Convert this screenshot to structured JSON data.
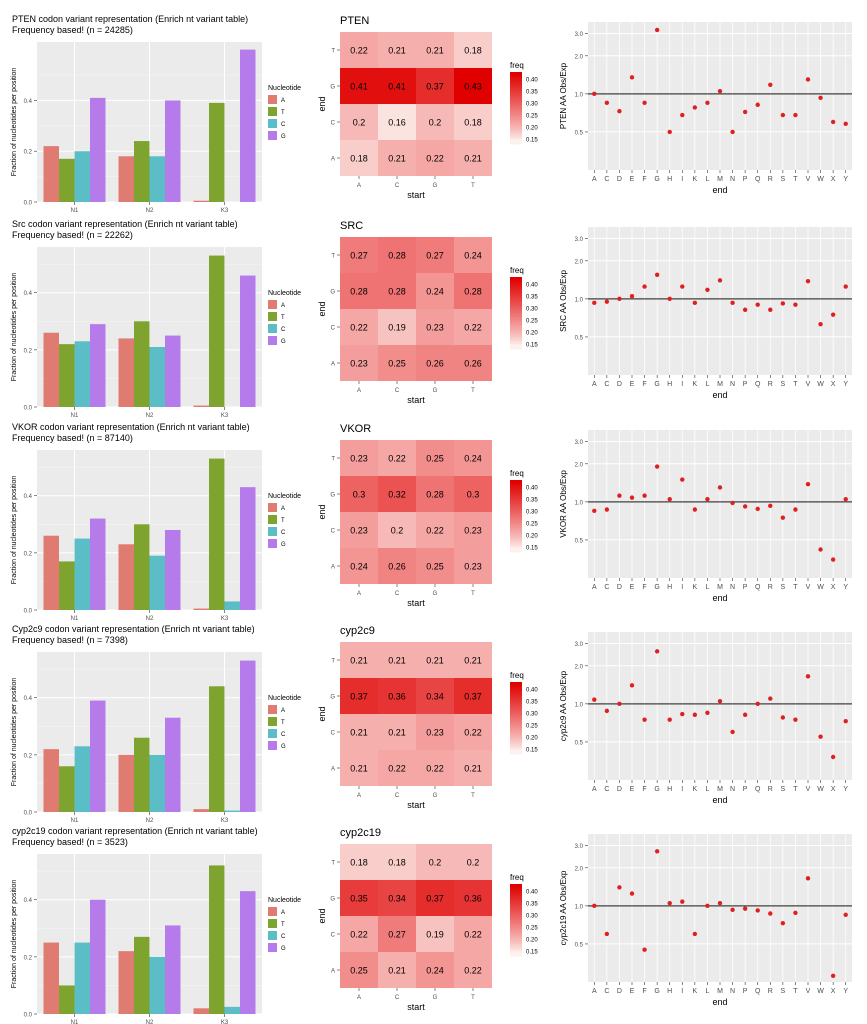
{
  "colors": {
    "nucleotide_A": "#E07B72",
    "nucleotide_T": "#7EA32E",
    "nucleotide_C": "#5BBEC6",
    "nucleotide_G": "#B57BEA",
    "panel_bg": "#EBEBEB",
    "grid": "#FFFFFF",
    "heat_low": "#FDF1EE",
    "heat_high": "#E00000",
    "point": "#E02020",
    "refline": "#404040"
  },
  "legend_nucleotide": {
    "title": "Nucleotide",
    "labels": [
      "A",
      "T",
      "C",
      "G"
    ]
  },
  "legend_heat": {
    "title": "freq",
    "ticks": [
      "0.40",
      "0.35",
      "0.30",
      "0.25",
      "0.20",
      "0.15"
    ],
    "tick_values": [
      0.4,
      0.35,
      0.3,
      0.25,
      0.2,
      0.15
    ]
  },
  "chart_data": [
    {
      "type": "bar",
      "title": "PTEN codon variant representation (Enrich nt variant table)",
      "subtitle": "Frequency based! (n = 24285)",
      "ylabel": "Fraction of nucleotides per position",
      "categories": [
        "N1",
        "N2",
        "K3"
      ],
      "yticks": [
        "0.0",
        "0.2",
        "0.4"
      ],
      "ylim": [
        0,
        0.63
      ],
      "series": [
        {
          "name": "A",
          "values": [
            0.22,
            0.18,
            0.005
          ]
        },
        {
          "name": "T",
          "values": [
            0.17,
            0.24,
            0.39
          ]
        },
        {
          "name": "C",
          "values": [
            0.2,
            0.18,
            0.0
          ]
        },
        {
          "name": "G",
          "values": [
            0.41,
            0.4,
            0.6
          ]
        }
      ]
    },
    {
      "type": "heatmap",
      "title": "PTEN",
      "xlabel": "start",
      "ylabel": "end",
      "x": [
        "A",
        "C",
        "G",
        "T"
      ],
      "y": [
        "T",
        "G",
        "C",
        "A"
      ],
      "values": [
        [
          0.22,
          0.21,
          0.21,
          0.18
        ],
        [
          0.41,
          0.41,
          0.37,
          0.43
        ],
        [
          0.2,
          0.16,
          0.2,
          0.18
        ],
        [
          0.18,
          0.21,
          0.22,
          0.21
        ]
      ],
      "value_labels": [
        [
          "0.22",
          "0.21",
          "0.21",
          "0.18"
        ],
        [
          "0.41",
          "0.41",
          "0.37",
          "0.43"
        ],
        [
          "0.2",
          "0.16",
          "0.2",
          "0.18"
        ],
        [
          "0.18",
          "0.21",
          "0.22",
          "0.21"
        ]
      ]
    },
    {
      "type": "scatter",
      "xlabel": "end",
      "ylabel": "PTEN AA Obs/Exp",
      "log_y": true,
      "ylim": [
        0.25,
        3.7
      ],
      "yticks": [
        "0.5",
        "1.0",
        "2.0",
        "3.0"
      ],
      "ytick_values": [
        0.5,
        1.0,
        2.0,
        3.0
      ],
      "refline": 1.0,
      "x": [
        "A",
        "C",
        "D",
        "E",
        "F",
        "G",
        "H",
        "I",
        "K",
        "L",
        "M",
        "N",
        "P",
        "Q",
        "R",
        "S",
        "T",
        "V",
        "W",
        "X",
        "Y"
      ],
      "values": [
        1.0,
        0.85,
        0.73,
        1.35,
        0.85,
        3.2,
        0.5,
        0.68,
        0.78,
        0.85,
        1.05,
        0.5,
        0.72,
        0.82,
        1.18,
        0.68,
        0.68,
        1.3,
        0.93,
        0.6,
        0.58
      ]
    },
    {
      "type": "bar",
      "title": "Src codon variant representation (Enrich nt variant table)",
      "subtitle": "Frequency based! (n = 22262)",
      "ylabel": "Fraction of nucleotides per position",
      "categories": [
        "N1",
        "N2",
        "K3"
      ],
      "yticks": [
        "0.0",
        "0.2",
        "0.4"
      ],
      "ylim": [
        0,
        0.56
      ],
      "series": [
        {
          "name": "A",
          "values": [
            0.26,
            0.24,
            0.005
          ]
        },
        {
          "name": "T",
          "values": [
            0.22,
            0.3,
            0.53
          ]
        },
        {
          "name": "C",
          "values": [
            0.23,
            0.21,
            0.0
          ]
        },
        {
          "name": "G",
          "values": [
            0.29,
            0.25,
            0.46
          ]
        }
      ]
    },
    {
      "type": "heatmap",
      "title": "SRC",
      "xlabel": "start",
      "ylabel": "end",
      "x": [
        "A",
        "C",
        "G",
        "T"
      ],
      "y": [
        "T",
        "G",
        "C",
        "A"
      ],
      "values": [
        [
          0.27,
          0.28,
          0.27,
          0.24
        ],
        [
          0.28,
          0.28,
          0.24,
          0.28
        ],
        [
          0.22,
          0.19,
          0.23,
          0.22
        ],
        [
          0.23,
          0.25,
          0.26,
          0.26
        ]
      ],
      "value_labels": [
        [
          "0.27",
          "0.28",
          "0.27",
          "0.24"
        ],
        [
          "0.28",
          "0.28",
          "0.24",
          "0.28"
        ],
        [
          "0.22",
          "0.19",
          "0.23",
          "0.22"
        ],
        [
          "0.23",
          "0.25",
          "0.26",
          "0.26"
        ]
      ]
    },
    {
      "type": "scatter",
      "xlabel": "end",
      "ylabel": "SRC AA Obs/Exp",
      "log_y": true,
      "ylim": [
        0.25,
        3.7
      ],
      "yticks": [
        "0.5",
        "1.0",
        "2.0",
        "3.0"
      ],
      "ytick_values": [
        0.5,
        1.0,
        2.0,
        3.0
      ],
      "refline": 1.0,
      "x": [
        "A",
        "C",
        "D",
        "E",
        "F",
        "G",
        "H",
        "I",
        "K",
        "L",
        "M",
        "N",
        "P",
        "Q",
        "R",
        "S",
        "T",
        "V",
        "W",
        "X",
        "Y"
      ],
      "values": [
        0.93,
        0.95,
        1.0,
        1.05,
        1.25,
        1.55,
        1.0,
        1.25,
        0.93,
        1.18,
        1.4,
        0.93,
        0.82,
        0.9,
        0.82,
        0.92,
        0.9,
        1.38,
        0.63,
        0.75,
        1.25
      ]
    },
    {
      "type": "bar",
      "title": "VKOR codon variant representation (Enrich nt variant table)",
      "subtitle": "Frequency based! (n = 87140)",
      "ylabel": "Fraction of nucleotides per position",
      "categories": [
        "N1",
        "N2",
        "K3"
      ],
      "yticks": [
        "0.0",
        "0.2",
        "0.4"
      ],
      "ylim": [
        0,
        0.56
      ],
      "series": [
        {
          "name": "A",
          "values": [
            0.26,
            0.23,
            0.005
          ]
        },
        {
          "name": "T",
          "values": [
            0.17,
            0.3,
            0.53
          ]
        },
        {
          "name": "C",
          "values": [
            0.25,
            0.19,
            0.03
          ]
        },
        {
          "name": "G",
          "values": [
            0.32,
            0.28,
            0.43
          ]
        }
      ]
    },
    {
      "type": "heatmap",
      "title": "VKOR",
      "xlabel": "start",
      "ylabel": "end",
      "x": [
        "A",
        "C",
        "G",
        "T"
      ],
      "y": [
        "T",
        "G",
        "C",
        "A"
      ],
      "values": [
        [
          0.23,
          0.22,
          0.25,
          0.24
        ],
        [
          0.3,
          0.32,
          0.28,
          0.3
        ],
        [
          0.23,
          0.2,
          0.22,
          0.23
        ],
        [
          0.24,
          0.26,
          0.25,
          0.23
        ]
      ],
      "value_labels": [
        [
          "0.23",
          "0.22",
          "0.25",
          "0.24"
        ],
        [
          "0.3",
          "0.32",
          "0.28",
          "0.3"
        ],
        [
          "0.23",
          "0.2",
          "0.22",
          "0.23"
        ],
        [
          "0.24",
          "0.26",
          "0.25",
          "0.23"
        ]
      ]
    },
    {
      "type": "scatter",
      "xlabel": "end",
      "ylabel": "VKOR AA Obs/Exp",
      "log_y": true,
      "ylim": [
        0.25,
        3.7
      ],
      "yticks": [
        "0.5",
        "1.0",
        "2.0",
        "3.0"
      ],
      "ytick_values": [
        0.5,
        1.0,
        2.0,
        3.0
      ],
      "refline": 1.0,
      "x": [
        "A",
        "C",
        "D",
        "E",
        "F",
        "G",
        "H",
        "I",
        "K",
        "L",
        "M",
        "N",
        "P",
        "Q",
        "R",
        "S",
        "T",
        "V",
        "W",
        "X",
        "Y"
      ],
      "values": [
        0.85,
        0.87,
        1.12,
        1.08,
        1.12,
        1.9,
        1.05,
        1.5,
        0.87,
        1.05,
        1.3,
        0.98,
        0.92,
        0.88,
        0.93,
        0.75,
        0.87,
        1.38,
        0.42,
        0.35,
        1.05
      ]
    },
    {
      "type": "bar",
      "title": "Cyp2c9 codon variant representation (Enrich nt variant table)",
      "subtitle": "Frequency based! (n = 7398)",
      "ylabel": "Fraction of nucleotides per position",
      "categories": [
        "N1",
        "N2",
        "K3"
      ],
      "yticks": [
        "0.0",
        "0.2",
        "0.4"
      ],
      "ylim": [
        0,
        0.56
      ],
      "series": [
        {
          "name": "A",
          "values": [
            0.22,
            0.2,
            0.01
          ]
        },
        {
          "name": "T",
          "values": [
            0.16,
            0.26,
            0.44
          ]
        },
        {
          "name": "C",
          "values": [
            0.23,
            0.2,
            0.005
          ]
        },
        {
          "name": "G",
          "values": [
            0.39,
            0.33,
            0.53
          ]
        }
      ]
    },
    {
      "type": "heatmap",
      "title": "cyp2c9",
      "xlabel": "start",
      "ylabel": "end",
      "x": [
        "A",
        "C",
        "G",
        "T"
      ],
      "y": [
        "T",
        "G",
        "C",
        "A"
      ],
      "values": [
        [
          0.21,
          0.21,
          0.21,
          0.21
        ],
        [
          0.37,
          0.36,
          0.34,
          0.37
        ],
        [
          0.21,
          0.21,
          0.23,
          0.22
        ],
        [
          0.21,
          0.22,
          0.22,
          0.21
        ]
      ],
      "value_labels": [
        [
          "0.21",
          "0.21",
          "0.21",
          "0.21"
        ],
        [
          "0.37",
          "0.36",
          "0.34",
          "0.37"
        ],
        [
          "0.21",
          "0.21",
          "0.23",
          "0.22"
        ],
        [
          "0.21",
          "0.22",
          "0.22",
          "0.21"
        ]
      ]
    },
    {
      "type": "scatter",
      "xlabel": "end",
      "ylabel": "cyp2c9 AA Obs/Exp",
      "log_y": true,
      "ylim": [
        0.25,
        3.7
      ],
      "yticks": [
        "0.5",
        "1.0",
        "2.0",
        "3.0"
      ],
      "ytick_values": [
        0.5,
        1.0,
        2.0,
        3.0
      ],
      "refline": 1.0,
      "x": [
        "A",
        "C",
        "D",
        "E",
        "F",
        "G",
        "H",
        "I",
        "K",
        "L",
        "M",
        "N",
        "P",
        "Q",
        "R",
        "S",
        "T",
        "V",
        "W",
        "X",
        "Y"
      ],
      "values": [
        1.08,
        0.88,
        1.0,
        1.4,
        0.75,
        2.6,
        0.75,
        0.83,
        0.82,
        0.85,
        1.05,
        0.6,
        0.82,
        1.0,
        1.1,
        0.78,
        0.75,
        1.65,
        0.55,
        0.38,
        0.73
      ]
    },
    {
      "type": "bar",
      "title": "cyp2c19 codon variant representation (Enrich nt variant table)",
      "subtitle": "Frequency based! (n = 3523)",
      "ylabel": "Fraction of nucleotides per position",
      "categories": [
        "N1",
        "N2",
        "K3"
      ],
      "yticks": [
        "0.0",
        "0.2",
        "0.4"
      ],
      "ylim": [
        0,
        0.56
      ],
      "series": [
        {
          "name": "A",
          "values": [
            0.25,
            0.22,
            0.02
          ]
        },
        {
          "name": "T",
          "values": [
            0.1,
            0.27,
            0.52
          ]
        },
        {
          "name": "C",
          "values": [
            0.25,
            0.2,
            0.025
          ]
        },
        {
          "name": "G",
          "values": [
            0.4,
            0.31,
            0.43
          ]
        }
      ]
    },
    {
      "type": "heatmap",
      "title": "cyp2c19",
      "xlabel": "start",
      "ylabel": "end",
      "x": [
        "A",
        "C",
        "G",
        "T"
      ],
      "y": [
        "T",
        "G",
        "C",
        "A"
      ],
      "values": [
        [
          0.18,
          0.18,
          0.2,
          0.2
        ],
        [
          0.35,
          0.34,
          0.37,
          0.36
        ],
        [
          0.22,
          0.27,
          0.19,
          0.22
        ],
        [
          0.25,
          0.21,
          0.24,
          0.22
        ]
      ],
      "value_labels": [
        [
          "0.18",
          "0.18",
          "0.2",
          "0.2"
        ],
        [
          "0.35",
          "0.34",
          "0.37",
          "0.36"
        ],
        [
          "0.22",
          "0.27",
          "0.19",
          "0.22"
        ],
        [
          "0.25",
          "0.21",
          "0.24",
          "0.22"
        ]
      ]
    },
    {
      "type": "scatter",
      "xlabel": "end",
      "ylabel": "cyp2c19 AA Obs/Exp",
      "log_y": true,
      "ylim": [
        0.25,
        3.7
      ],
      "yticks": [
        "0.5",
        "1.0",
        "2.0",
        "3.0"
      ],
      "ytick_values": [
        0.5,
        1.0,
        2.0,
        3.0
      ],
      "refline": 1.0,
      "x": [
        "A",
        "C",
        "D",
        "E",
        "F",
        "G",
        "H",
        "I",
        "K",
        "L",
        "M",
        "N",
        "P",
        "Q",
        "R",
        "S",
        "T",
        "V",
        "W",
        "X",
        "Y"
      ],
      "values": [
        1.0,
        0.6,
        1.4,
        1.25,
        0.45,
        2.7,
        1.05,
        1.08,
        0.6,
        1.0,
        1.05,
        0.93,
        0.95,
        0.92,
        0.87,
        0.73,
        0.88,
        1.65,
        null,
        0.28,
        0.85
      ]
    }
  ]
}
